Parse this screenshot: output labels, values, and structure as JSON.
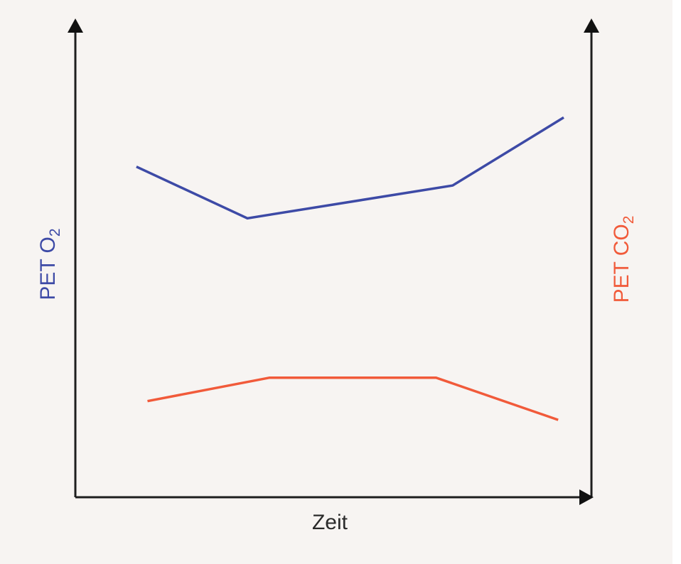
{
  "chart_data": {
    "type": "line",
    "title": "",
    "xlabel": "Zeit",
    "ylabel_left": {
      "main": "PET O",
      "sub": "2"
    },
    "ylabel_right": {
      "main": "PET CO",
      "sub": "2"
    },
    "grid": false,
    "legend": "none",
    "ticks": "none",
    "x": [
      0,
      1,
      2,
      3
    ],
    "xlim": [
      -0.55,
      4.1
    ],
    "ylim": [
      0,
      100
    ],
    "series": [
      {
        "axis": "left",
        "color": "#3d4aa6",
        "points": [
          [
            0,
            70.5
          ],
          [
            1,
            59.5
          ],
          [
            2.85,
            66.5
          ],
          [
            3.85,
            81
          ]
        ]
      },
      {
        "axis": "right",
        "color": "#f15a3a",
        "points": [
          [
            0.1,
            20.5
          ],
          [
            1.2,
            25.5
          ],
          [
            2.7,
            25.5
          ],
          [
            3.8,
            16.5
          ]
        ]
      }
    ]
  }
}
